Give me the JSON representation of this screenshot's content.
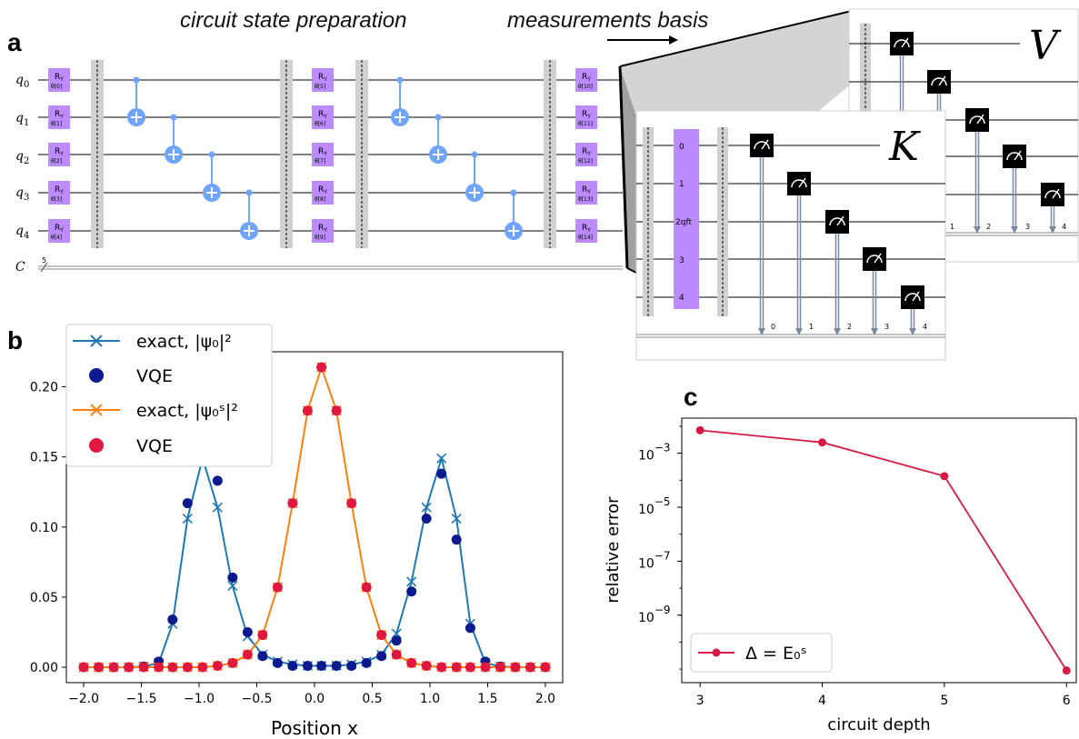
{
  "panel_labels": {
    "a": "a",
    "b": "b",
    "c": "c"
  },
  "captions": {
    "circuit": "circuit state preparation",
    "measurement": "measurements basis"
  },
  "circuit": {
    "qubits": [
      "q",
      "q",
      "q",
      "q",
      "q"
    ],
    "qubit_indices": [
      "0",
      "1",
      "2",
      "3",
      "4"
    ],
    "classical_label": "C",
    "classical_count": "5",
    "ry_label": "R",
    "ry_sub": "Y",
    "ry_params_block1": [
      "θ[0]",
      "θ[1]",
      "θ[2]",
      "θ[3]",
      "θ[4]"
    ],
    "ry_params_block2": [
      "θ[5]",
      "θ[6]",
      "θ[7]",
      "θ[8]",
      "θ[9]"
    ],
    "ry_params_block3": [
      "θ[10]",
      "θ[11]",
      "θ[12]",
      "θ[13]",
      "θ[14]"
    ]
  },
  "measurement_V": {
    "letter": "V",
    "bit_labels": [
      "1",
      "2",
      "3",
      "4"
    ]
  },
  "measurement_K": {
    "letter": "K",
    "qft_labels": [
      "0",
      "1",
      "2qft",
      "3",
      "4"
    ],
    "bit_labels": [
      "0",
      "1",
      "2",
      "3",
      "4"
    ]
  },
  "colors": {
    "blue": "#1f77b4",
    "navy": "#0b1a8c",
    "orange": "#ff7f0e",
    "red": "#e0173f",
    "crimson": "#d61a46",
    "gate": "#bb8bff",
    "cnot": "#6fa4ff"
  },
  "chart_data": [
    {
      "type": "line",
      "xlabel": "Position x",
      "ylabel": "",
      "xlim": [
        -2.15,
        2.15
      ],
      "ylim": [
        -0.011,
        0.225
      ],
      "xticks": [
        "−2.0",
        "−1.5",
        "−1.0",
        "−0.5",
        "0.0",
        "0.5",
        "1.0",
        "1.5",
        "2.0"
      ],
      "xtick_values": [
        -2.0,
        -1.5,
        -1.0,
        -0.5,
        0.0,
        0.5,
        1.0,
        1.5,
        2.0
      ],
      "yticks": [
        "0.00",
        "0.05",
        "0.10",
        "0.15",
        "0.20"
      ],
      "ytick_values": [
        0.0,
        0.05,
        0.1,
        0.15,
        0.2
      ],
      "legend": [
        "exact, |ψ₀|²",
        "VQE",
        "exact, |ψ₀ˢ|²",
        "VQE"
      ],
      "legend_position": "top-left",
      "x": [
        -2.0,
        -1.87,
        -1.74,
        -1.61,
        -1.48,
        -1.35,
        -1.23,
        -1.1,
        -0.97,
        -0.84,
        -0.71,
        -0.58,
        -0.45,
        -0.32,
        -0.19,
        -0.06,
        0.06,
        0.19,
        0.32,
        0.45,
        0.58,
        0.71,
        0.84,
        0.97,
        1.1,
        1.23,
        1.35,
        1.48,
        1.61,
        1.74,
        1.87,
        2.0
      ],
      "series": [
        {
          "name": "exact, |ψ₀|²",
          "style": "line-x",
          "values": [
            0.0,
            0.0,
            0.0,
            0.0,
            0.0005,
            0.003,
            0.031,
            0.106,
            0.149,
            0.114,
            0.058,
            0.022,
            0.009,
            0.004,
            0.002,
            0.001,
            0.001,
            0.001,
            0.002,
            0.004,
            0.009,
            0.024,
            0.061,
            0.114,
            0.149,
            0.106,
            0.031,
            0.003,
            0.0005,
            0.0,
            0.0,
            0.0
          ]
        },
        {
          "name": "VQE",
          "style": "dot-navy",
          "values": [
            0.0,
            0.0,
            0.0,
            0.0,
            0.0005,
            0.004,
            0.034,
            0.117,
            0.147,
            0.133,
            0.064,
            0.025,
            0.008,
            0.003,
            0.001,
            0.001,
            0.001,
            0.001,
            0.001,
            0.003,
            0.008,
            0.019,
            0.054,
            0.106,
            0.138,
            0.091,
            0.028,
            0.004,
            0.0005,
            0.0,
            0.0,
            0.0
          ]
        },
        {
          "name": "exact, |ψ₀ˢ|²",
          "style": "line-x-orange",
          "values": [
            0.0,
            0.0,
            0.0,
            0.0,
            0.0,
            0.0,
            0.0,
            0.0,
            0.0,
            0.001,
            0.003,
            0.009,
            0.023,
            0.057,
            0.117,
            0.183,
            0.214,
            0.183,
            0.117,
            0.057,
            0.023,
            0.009,
            0.003,
            0.001,
            0.0,
            0.0,
            0.0,
            0.0,
            0.0,
            0.0,
            0.0,
            0.0
          ]
        },
        {
          "name": "VQE",
          "style": "dot-red",
          "values": [
            0.0,
            0.0,
            0.0,
            0.0,
            0.0,
            0.0,
            0.0,
            0.0,
            0.0,
            0.001,
            0.003,
            0.009,
            0.023,
            0.057,
            0.117,
            0.183,
            0.214,
            0.183,
            0.117,
            0.057,
            0.023,
            0.009,
            0.003,
            0.001,
            0.0,
            0.0,
            0.0,
            0.0,
            0.0,
            0.0,
            0.0,
            0.0
          ]
        }
      ]
    },
    {
      "type": "line",
      "xlabel": "circuit depth",
      "ylabel": "relative error",
      "yscale": "log",
      "xlim": [
        2.85,
        6.08
      ],
      "ylim_log10": [
        -11.5,
        -1.7
      ],
      "xticks": [
        "3",
        "4",
        "5",
        "6"
      ],
      "xtick_values": [
        3,
        4,
        5,
        6
      ],
      "yticks_exp": [
        "−3",
        "−5",
        "−7",
        "−9"
      ],
      "ytick_values_log10": [
        -3,
        -5,
        -7,
        -9
      ],
      "ytick_base": "10",
      "legend": [
        "Δ = E₀ˢ"
      ],
      "legend_position": "bottom-left",
      "series": [
        {
          "name": "Δ = E₀ˢ",
          "x": [
            3,
            4,
            5,
            6
          ],
          "log10_values": [
            -2.15,
            -2.6,
            -3.85,
            -11.05
          ]
        }
      ]
    }
  ]
}
